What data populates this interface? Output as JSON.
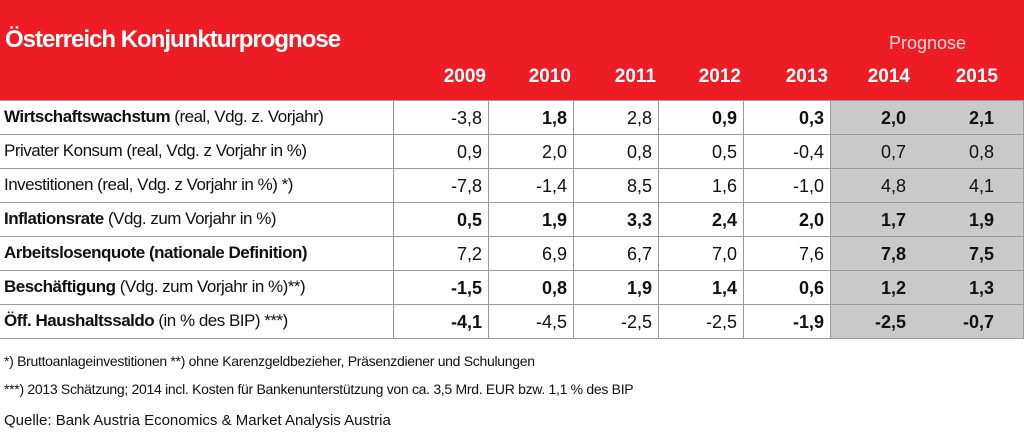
{
  "header": {
    "title": "Österreich Konjunkturprognose",
    "prognose_label": "Prognose"
  },
  "chart_data": {
    "type": "table",
    "title": "Österreich Konjunkturprognose",
    "columns": [
      "2009",
      "2010",
      "2011",
      "2012",
      "2013",
      "2014",
      "2015"
    ],
    "forecast_columns": [
      "2014",
      "2015"
    ],
    "rows": [
      {
        "label_bold": "Wirtschaftswachstum",
        "label_rest": " (real, Vdg. z. Vorjahr)",
        "values": [
          "-3,8",
          "1,8",
          "2,8",
          "0,9",
          "0,3",
          "2,0",
          "2,1"
        ],
        "bold_values": [
          false,
          true,
          false,
          true,
          true,
          true,
          true
        ]
      },
      {
        "label_bold": "",
        "label_rest": "Privater Konsum (real, Vdg. z Vorjahr in %)",
        "values": [
          "0,9",
          "2,0",
          "0,8",
          "0,5",
          "-0,4",
          "0,7",
          "0,8"
        ],
        "bold_values": [
          false,
          false,
          false,
          false,
          false,
          false,
          false
        ]
      },
      {
        "label_bold": "",
        "label_rest": "Investitionen (real, Vdg. z Vorjahr in %) *)",
        "values": [
          "-7,8",
          "-1,4",
          "8,5",
          "1,6",
          "-1,0",
          "4,8",
          "4,1"
        ],
        "bold_values": [
          false,
          false,
          false,
          false,
          false,
          false,
          false
        ]
      },
      {
        "label_bold": "Inflationsrate",
        "label_rest": " (Vdg. zum Vorjahr in %)",
        "values": [
          "0,5",
          "1,9",
          "3,3",
          "2,4",
          "2,0",
          "1,7",
          "1,9"
        ],
        "bold_values": [
          true,
          true,
          true,
          true,
          true,
          true,
          true
        ]
      },
      {
        "label_bold": "Arbeitslosenquote (nationale Definition)",
        "label_rest": "",
        "values": [
          "7,2",
          "6,9",
          "6,7",
          "7,0",
          "7,6",
          "7,8",
          "7,5"
        ],
        "bold_values": [
          false,
          false,
          false,
          false,
          false,
          true,
          true
        ]
      },
      {
        "label_bold": "Beschäftigung",
        "label_rest": " (Vdg. zum Vorjahr in %)**)",
        "values": [
          "-1,5",
          "0,8",
          "1,9",
          "1,4",
          "0,6",
          "1,2",
          "1,3"
        ],
        "bold_values": [
          true,
          true,
          true,
          true,
          true,
          true,
          true
        ]
      },
      {
        "label_bold": "Öff. Haushaltssaldo",
        "label_rest": " (in % des BIP) ***)",
        "values": [
          "-4,1",
          "-4,5",
          "-2,5",
          "-2,5",
          "-1,9",
          "-2,5",
          "-0,7"
        ],
        "bold_values": [
          true,
          false,
          false,
          false,
          true,
          true,
          true
        ]
      }
    ]
  },
  "footnotes": {
    "note1": "*) Bruttoanlageinvestitionen     **) ohne Karenzgeldbezieher, Präsenzdiener und Schulungen",
    "note2": "***) 2013 Schätzung; 2014 incl. Kosten für Bankenunterstützung von ca. 3,5 Mrd. EUR bzw. 1,1 % des BIP",
    "source": "Quelle: Bank Austria Economics & Market Analysis Austria"
  },
  "colors": {
    "header_red": "#ee1c25",
    "forecast_gray": "#c9c9c9"
  }
}
